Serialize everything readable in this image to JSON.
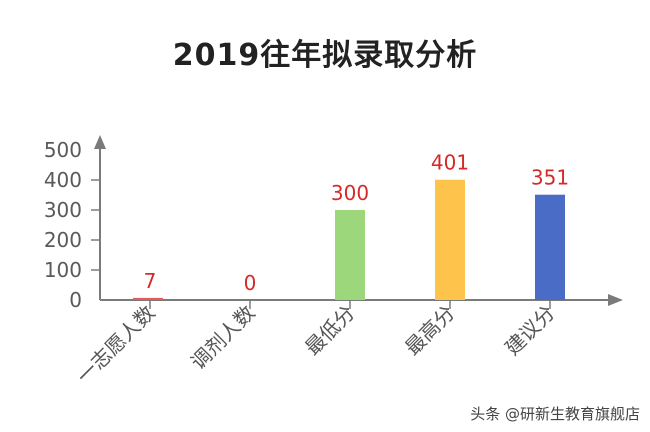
{
  "title": "2019往年拟录取分析",
  "watermark": "头条 @研新生教育旗舰店",
  "chart_data": {
    "type": "bar",
    "title": "2019往年拟录取分析",
    "xlabel": "",
    "ylabel": "",
    "categories": [
      "一志愿人数",
      "调剂人数",
      "最低分",
      "最高分",
      "建议分"
    ],
    "values": [
      7,
      0,
      300,
      401,
      351
    ],
    "colors": [
      "#e85a5a",
      "#e85a5a",
      "#9dd77c",
      "#fdc34a",
      "#4a6cc7"
    ],
    "value_label_color": "#d62a2a",
    "yticks": [
      0,
      100,
      200,
      300,
      400,
      500
    ],
    "ylim": [
      0,
      500
    ],
    "grid": false,
    "legend": "none"
  }
}
